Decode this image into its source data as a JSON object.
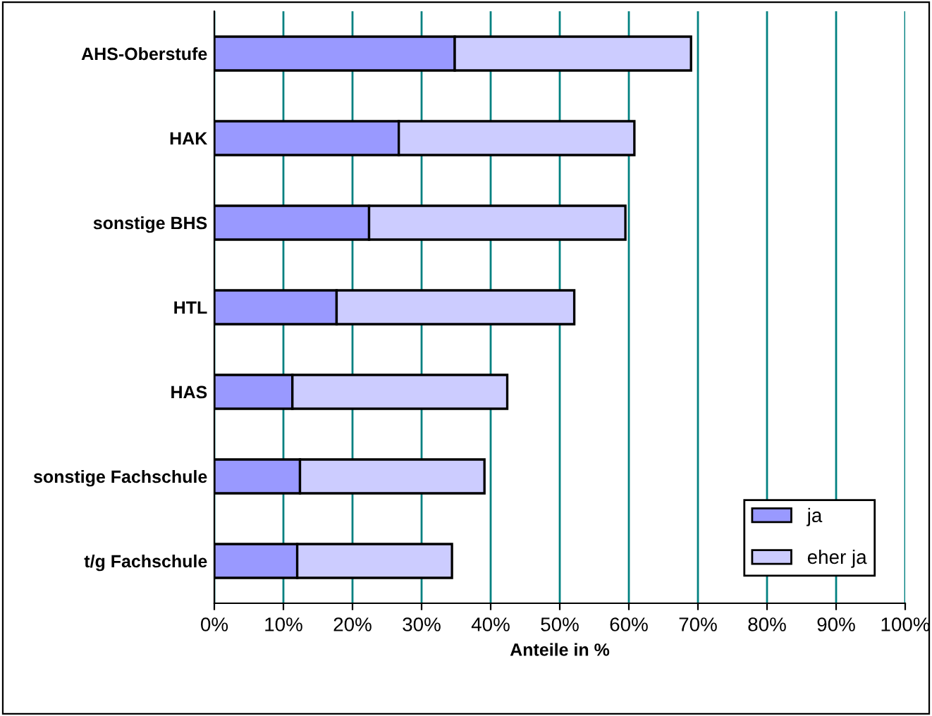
{
  "chart_data": {
    "type": "bar",
    "orientation": "horizontal",
    "stacked": true,
    "xlabel": "Anteile in %",
    "categories": [
      "AHS-Oberstufe",
      "HAK",
      "sonstige BHS",
      "HTL",
      "HAS",
      "sonstige Fachschule",
      "t/g Fachschule"
    ],
    "series": [
      {
        "name": "ja",
        "color": "#9999ff",
        "values": [
          34.8,
          26.7,
          22.4,
          17.7,
          11.3,
          12.4,
          12.0
        ]
      },
      {
        "name": "eher ja",
        "color": "#ccccff",
        "values": [
          34.2,
          34.1,
          37.1,
          34.4,
          31.1,
          26.7,
          22.4
        ]
      }
    ],
    "xlim": [
      0,
      100
    ],
    "xticks": [
      {
        "value": 0,
        "label": "0%"
      },
      {
        "value": 10,
        "label": "10%"
      },
      {
        "value": 20,
        "label": "20%"
      },
      {
        "value": 30,
        "label": "30%"
      },
      {
        "value": 40,
        "label": "40%"
      },
      {
        "value": 50,
        "label": "50%"
      },
      {
        "value": 60,
        "label": "60%"
      },
      {
        "value": 70,
        "label": "70%"
      },
      {
        "value": 80,
        "label": "80%"
      },
      {
        "value": 90,
        "label": "90%"
      },
      {
        "value": 100,
        "label": "100%"
      }
    ],
    "grid": "x",
    "legend": "bottom right"
  }
}
